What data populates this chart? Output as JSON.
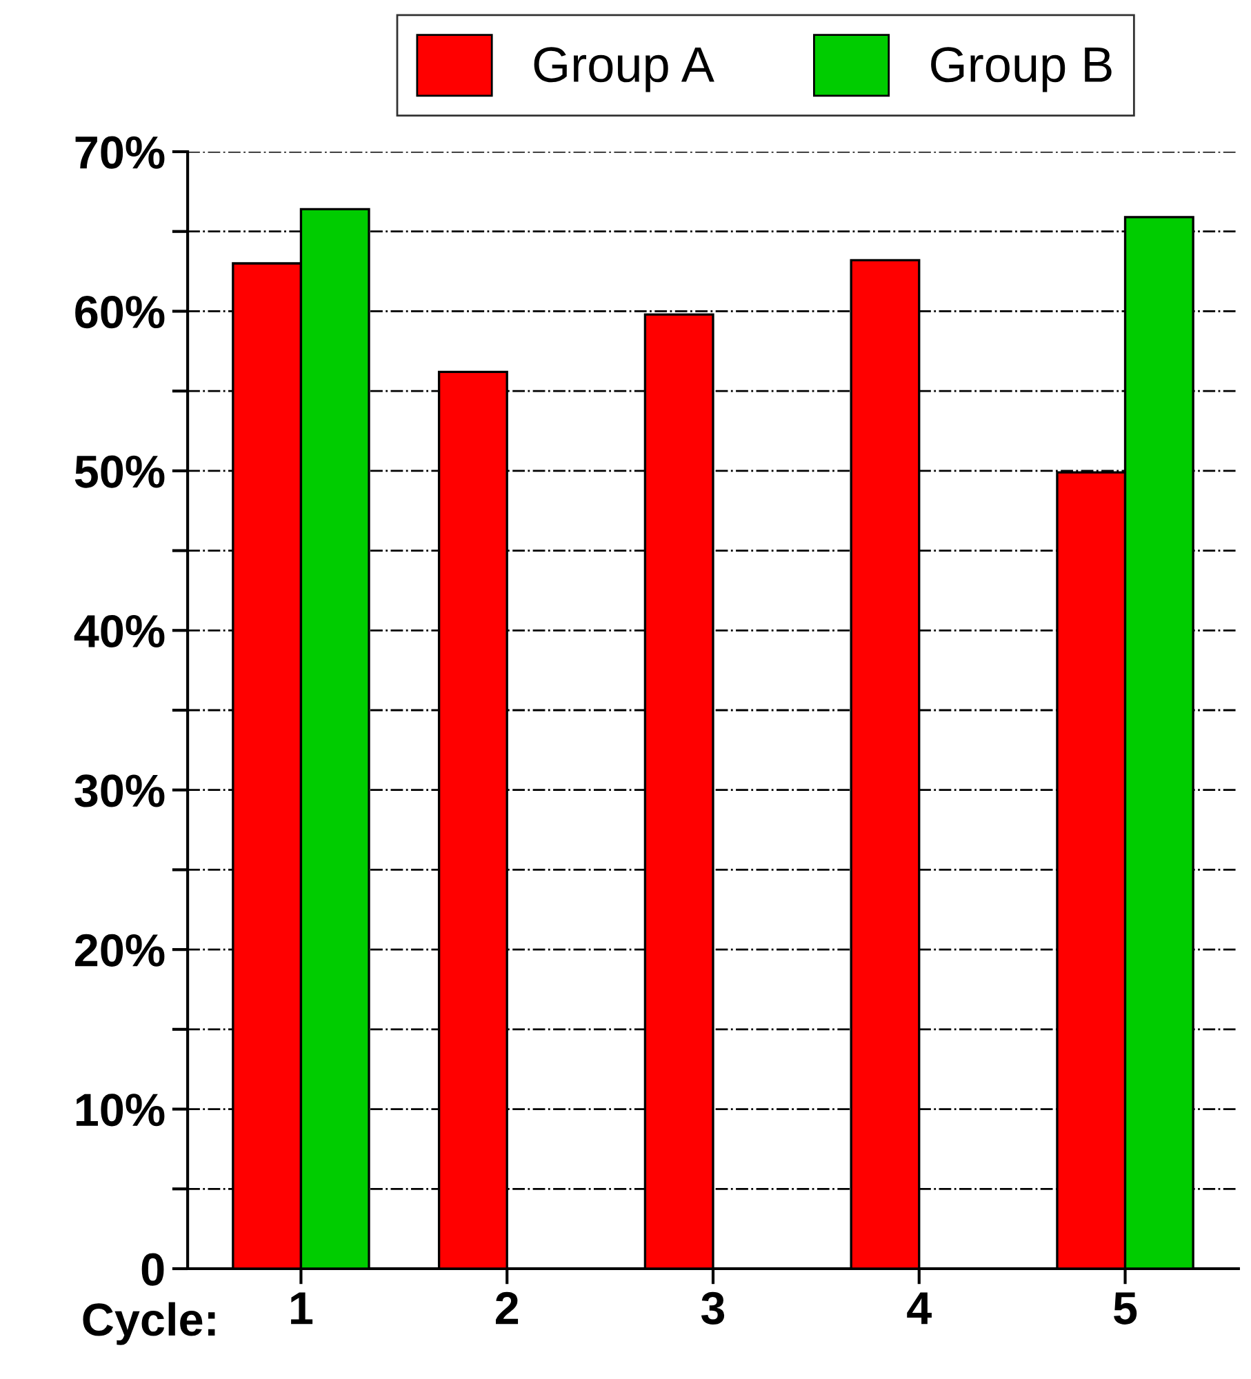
{
  "chart_data": {
    "type": "bar",
    "xlabel": "Cycle:",
    "categories": [
      "1",
      "2",
      "3",
      "4",
      "5"
    ],
    "series": [
      {
        "name": "Group A",
        "color": "#ff0000",
        "values": [
          63.0,
          56.2,
          59.8,
          63.2,
          49.9
        ]
      },
      {
        "name": "Group B",
        "color": "#00cc00",
        "values": [
          66.4,
          null,
          null,
          null,
          65.9
        ]
      }
    ],
    "ylim": [
      0,
      70
    ],
    "yticks": [
      {
        "value": 0,
        "label": "0"
      },
      {
        "value": 5,
        "label": null
      },
      {
        "value": 10,
        "label": "10%"
      },
      {
        "value": 15,
        "label": null
      },
      {
        "value": 20,
        "label": "20%"
      },
      {
        "value": 25,
        "label": null
      },
      {
        "value": 30,
        "label": "30%"
      },
      {
        "value": 35,
        "label": null
      },
      {
        "value": 40,
        "label": "40%"
      },
      {
        "value": 45,
        "label": null
      },
      {
        "value": 50,
        "label": "50%"
      },
      {
        "value": 55,
        "label": null
      },
      {
        "value": 60,
        "label": "60%"
      },
      {
        "value": 65,
        "label": null
      },
      {
        "value": 70,
        "label": "70%"
      }
    ],
    "grid": "y",
    "line_style": "dashed",
    "legend": "top"
  }
}
